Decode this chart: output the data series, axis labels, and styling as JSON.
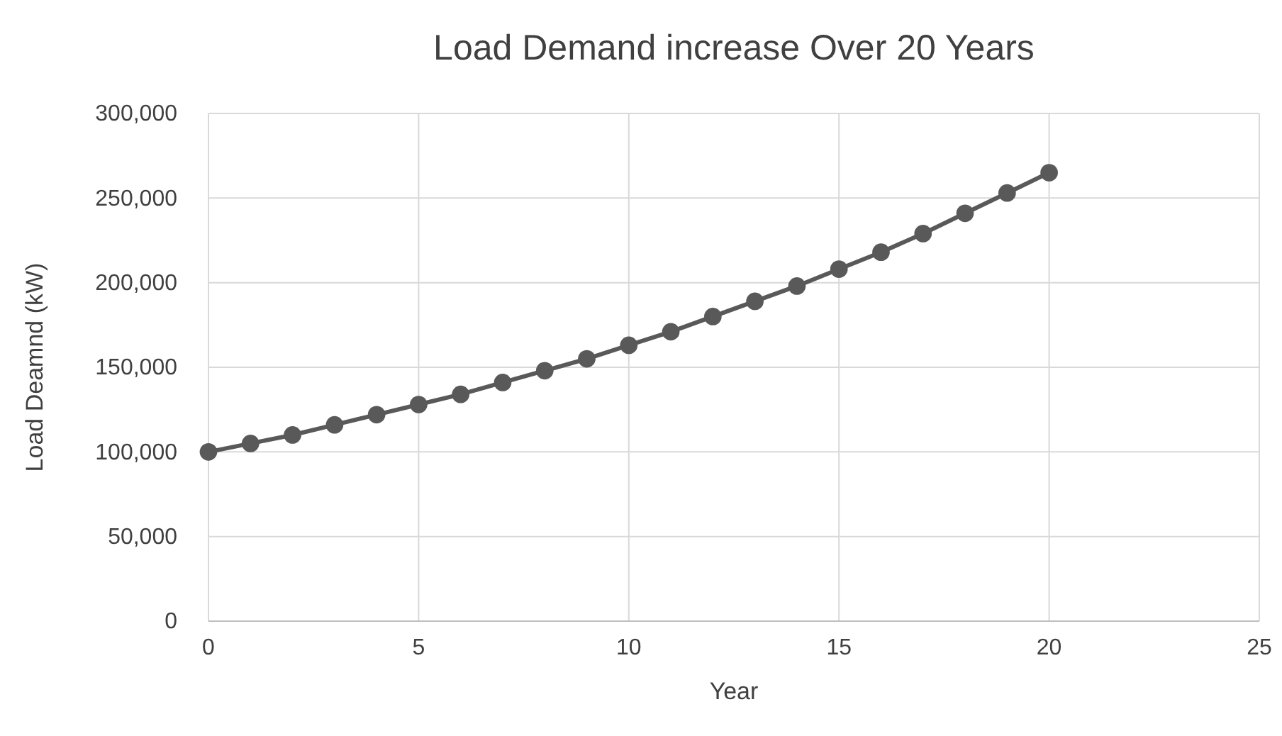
{
  "chart_data": {
    "type": "line",
    "title": "Load Demand increase Over 20 Years",
    "xlabel": "Year",
    "ylabel": "Load Deamnd (kW)",
    "x": [
      0,
      1,
      2,
      3,
      4,
      5,
      6,
      7,
      8,
      9,
      10,
      11,
      12,
      13,
      14,
      15,
      16,
      17,
      18,
      19,
      20
    ],
    "series": [
      {
        "color": "#595959",
        "values": [
          100000,
          105000,
          110000,
          116000,
          122000,
          128000,
          134000,
          141000,
          148000,
          155000,
          163000,
          171000,
          180000,
          189000,
          198000,
          208000,
          218000,
          229000,
          241000,
          253000,
          265000
        ]
      }
    ],
    "xlim": [
      0,
      25
    ],
    "xticks": [
      0,
      5,
      10,
      15,
      20,
      25
    ],
    "ylim": [
      0,
      300000
    ],
    "yticks": [
      0,
      {
        "value": 50000,
        "label": "50,000"
      },
      {
        "value": 100000,
        "label": "100,000"
      },
      {
        "value": 150000,
        "label": "150,000"
      },
      {
        "value": 200000,
        "label": "200,000"
      },
      {
        "value": 250000,
        "label": "250,000"
      },
      {
        "value": 300000,
        "label": "300,000"
      }
    ],
    "grid": true,
    "marker": "circle",
    "line_style": "solid"
  }
}
